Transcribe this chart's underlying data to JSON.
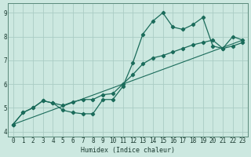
{
  "title": "",
  "xlabel": "Humidex (Indice chaleur)",
  "ylabel": "",
  "bg_color": "#cce8e0",
  "grid_color": "#aaccc4",
  "line_color": "#1a6b5a",
  "figsize": [
    3.2,
    2.0
  ],
  "dpi": 100,
  "xlim": [
    -0.5,
    23.5
  ],
  "ylim": [
    3.8,
    9.4
  ],
  "yticks": [
    4,
    5,
    6,
    7,
    8,
    9
  ],
  "xticks": [
    0,
    1,
    2,
    3,
    4,
    5,
    6,
    7,
    8,
    9,
    10,
    11,
    12,
    13,
    14,
    15,
    16,
    17,
    18,
    19,
    20,
    21,
    22,
    23
  ],
  "line1_x": [
    0,
    1,
    2,
    3,
    4,
    5,
    6,
    7,
    8,
    9,
    10,
    11,
    12,
    13,
    14,
    15,
    16,
    17,
    18,
    19,
    20,
    21,
    22,
    23
  ],
  "line1_y": [
    4.3,
    4.8,
    5.0,
    5.3,
    5.2,
    4.9,
    4.8,
    4.75,
    4.75,
    5.35,
    5.35,
    5.9,
    6.9,
    8.1,
    8.65,
    9.0,
    8.4,
    8.3,
    8.5,
    8.8,
    7.6,
    7.5,
    8.0,
    7.85
  ],
  "line2_x": [
    0,
    1,
    2,
    3,
    4,
    5,
    6,
    7,
    8,
    9,
    10,
    11,
    12,
    13,
    14,
    15,
    16,
    17,
    18,
    19,
    20,
    21,
    22,
    23
  ],
  "line2_y": [
    4.3,
    4.8,
    5.0,
    5.3,
    5.2,
    5.1,
    5.25,
    5.35,
    5.35,
    5.55,
    5.6,
    6.0,
    6.4,
    6.85,
    7.1,
    7.2,
    7.35,
    7.5,
    7.65,
    7.75,
    7.85,
    7.5,
    7.6,
    7.75
  ],
  "line3_x": [
    0,
    23
  ],
  "line3_y": [
    4.3,
    7.85
  ]
}
